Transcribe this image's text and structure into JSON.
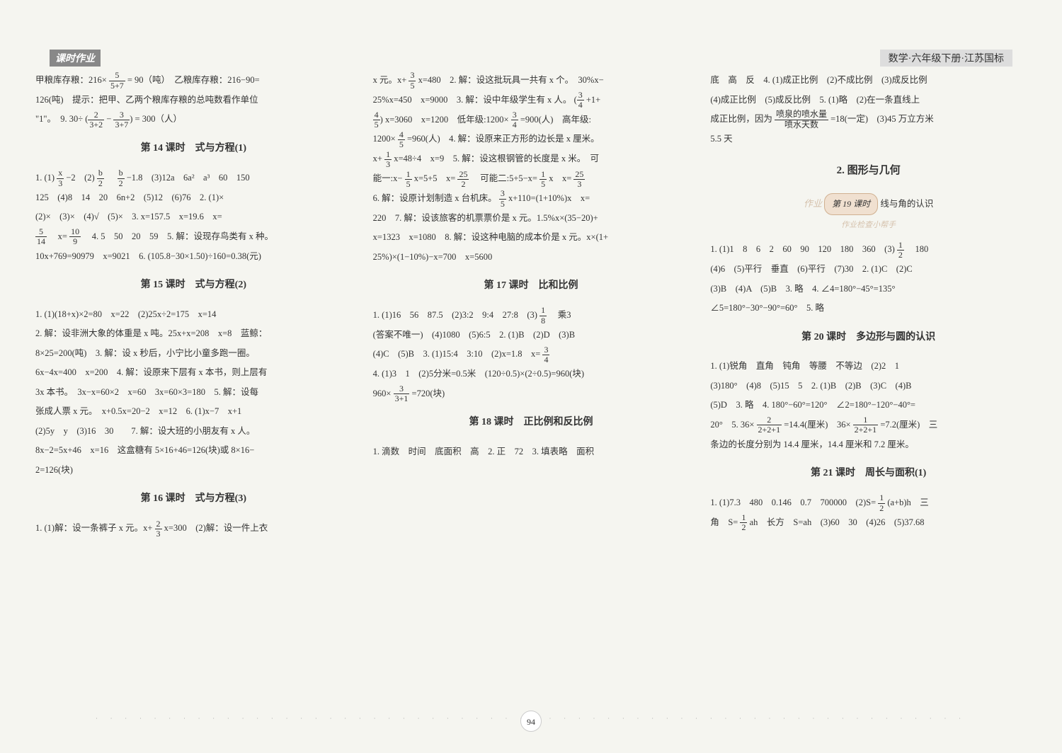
{
  "header": {
    "left": "课时作业",
    "right": "数学·六年级下册·江苏国标"
  },
  "col1": {
    "intro1": "甲粮库存粮：216×",
    "frac1_num": "5",
    "frac1_den": "5+7",
    "intro2": "= 90（吨）　乙粮库存粮：216−90=",
    "line2": "126(吨)　提示：把甲、乙两个粮库存粮的总吨数看作单位",
    "line3a": "\"1\"。　9. 30÷",
    "frac2a_num": "2",
    "frac2a_den": "3+2",
    "line3b": "−",
    "frac2b_num": "3",
    "frac2b_den": "3+7",
    "line3c": "= 300（人）",
    "title14": "第 14 课时　式与方程(1)",
    "l14_1a": "1. (1)",
    "l14_f1_num": "x",
    "l14_f1_den": "3",
    "l14_1b": "−2　(2)",
    "l14_f2_num": "b",
    "l14_f2_den": "2",
    "l14_1c": "　",
    "l14_f3_num": "b",
    "l14_f3_den": "2",
    "l14_1d": "−1.8　(3)12a　6a²　a³　60　150",
    "l14_2": "125　(4)8　14　20　6n+2　(5)12　(6)76　2. (1)×",
    "l14_3": "(2)×　(3)×　(4)√　(5)×　3. x=157.5　x=19.6　x=",
    "l14_4a": "",
    "l14_f4_num": "5",
    "l14_f4_den": "14",
    "l14_4b": "　x=",
    "l14_f5_num": "10",
    "l14_f5_den": "9",
    "l14_4c": "　4. 5　50　20　59　5. 解：设现存鸟类有 x 种。",
    "l14_5": "10x+769=90979　x=9021　6. (105.8−30×1.50)÷160=0.38(元)",
    "title15": "第 15 课时　式与方程(2)",
    "l15_1": "1. (1)(18+x)×2=80　x=22　(2)25x÷2=175　x=14",
    "l15_2": "2. 解：设非洲大象的体重是 x 吨。25x+x=208　x=8　蓝鲸：",
    "l15_3": "8×25=200(吨)　3. 解：设 x 秒后，小宁比小童多跑一圈。",
    "l15_4": "6x−4x=400　x=200　4. 解：设原来下层有 x 本书，则上层有",
    "l15_5": "3x 本书。　3x−x=60×2　x=60　3x=60×3=180　5. 解：设每",
    "l15_6": "张成人票 x 元。　x+0.5x=20−2　x=12　6. (1)x−7　x+1",
    "l15_7": "(2)5y　y　(3)16　30　　7. 解：设大班的小朋友有 x 人。",
    "l15_8": "8x−2=5x+46　x=16　这盒糖有 5×16+46=126(块)或 8×16−",
    "l15_9": "2=126(块)",
    "title16": "第 16 课时　式与方程(3)",
    "l16_1a": "1. (1)解：设一条裤子 x 元。x+",
    "l16_f1_num": "2",
    "l16_f1_den": "3",
    "l16_1b": "x=300　(2)解：设一件上衣"
  },
  "col2": {
    "l1a": "x 元。x+",
    "f1_num": "3",
    "f1_den": "5",
    "l1b": "x=480　2. 解：设这批玩具一共有 x 个。　30%x−",
    "l2a": "25%x=450　x=9000　3. 解：设中年级学生有 x 人。",
    "f2_num": "3",
    "f2_den": "4",
    "l2b": "+1+",
    "l3a": "",
    "f3_num": "4",
    "f3_den": "5",
    "l3b": "x=3060　x=1200　低年级:1200×",
    "f4_num": "3",
    "f4_den": "4",
    "l3c": "=900(人)　高年级:",
    "l4a": "1200×",
    "f5_num": "4",
    "f5_den": "5",
    "l4b": "=960(人)　4. 解：设原来正方形的边长是 x 厘米。",
    "l5a": "x+",
    "f6_num": "1",
    "f6_den": "3",
    "l5b": "x=48÷4　x=9　5. 解：设这根钢管的长度是 x 米。　可",
    "l6a": "能一:x−",
    "f7_num": "1",
    "f7_den": "5",
    "l6b": "x=5+5　x=",
    "f8_num": "25",
    "f8_den": "2",
    "l6c": "　可能二:5+5−x=",
    "f9_num": "1",
    "f9_den": "5",
    "l6d": "x　x=",
    "f10_num": "25",
    "f10_den": "3",
    "l7a": "6. 解：设原计划制造 x 台机床。",
    "f11_num": "3",
    "f11_den": "5",
    "l7b": "x+110=(1+10%)x　x=",
    "l8": "220　7. 解：设该旅客的机票票价是 x 元。1.5%x×(35−20)+",
    "l9": "x=1323　x=1080　8. 解：设这种电脑的成本价是 x 元。x×(1+",
    "l10": "25%)×(1−10%)−x=700　x=5600",
    "title17": "第 17 课时　比和比例",
    "l17_1a": "1. (1)16　56　87.5　(2)3:2　9:4　27:8　(3)",
    "f17_1_num": "1",
    "f17_1_den": "8",
    "l17_1b": "　乘3",
    "l17_2": "(答案不唯一)　(4)1080　(5)6:5　2. (1)B　(2)D　(3)B",
    "l17_3a": "(4)C　(5)B　3. (1)15:4　3:10　(2)x=1.8　x=",
    "f17_2_num": "3",
    "f17_2_den": "4",
    "l17_4": "4. (1)3　1　(2)5分米=0.5米　(120÷0.5)×(2÷0.5)=960(块)",
    "l17_5a": "960×",
    "f17_3_num": "3",
    "f17_3_den": "3+1",
    "l17_5b": "=720(块)",
    "title18": "第 18 课时　正比例和反比例",
    "l18_1": "1. 滴数　时间　底面积　高　2. 正　72　3. 填表略　面积"
  },
  "col3": {
    "l1": "底　高　反　4. (1)成正比例　(2)不成比例　(3)成反比例",
    "l2": "(4)成正比例　(5)成反比例　5. (1)略　(2)在一条直线上",
    "l3a": "成正比例，因为",
    "f1_num": "喷泉的喷水量",
    "f1_den": "喷水天数",
    "l3b": "=18(一定)　(3)45 万立方米",
    "l4": "5.5 天",
    "bigtitle": "2. 图形与几何",
    "badge1": "第 19 课时",
    "badge1_sub": "线与角的认识",
    "badge2": "作业检查小帮手",
    "l19_1a": "1. (1)1　8　6　2　60　90　120　180　360　(3)",
    "f19_1_num": "1",
    "f19_1_den": "2",
    "l19_1b": "　180",
    "l19_2": "(4)6　(5)平行　垂直　(6)平行　(7)30　2. (1)C　(2)C",
    "l19_3": "(3)B　(4)A　(5)B　3. 略　4. ∠4=180°−45°=135°",
    "l19_4": "∠5=180°−30°−90°=60°　5. 略",
    "title20": "第 20 课时　多边形与圆的认识",
    "l20_1": "1. (1)锐角　直角　钝角　等腰　不等边　(2)2　1",
    "l20_2": "(3)180°　(4)8　(5)15　5　2. (1)B　(2)B　(3)C　(4)B",
    "l20_3": "(5)D　3. 略　4. 180°−60°=120°　∠2=180°−120°−40°=",
    "l20_4a": "20°　5. 36×",
    "f20_1_num": "2",
    "f20_1_den": "2+2+1",
    "l20_4b": "=14.4(厘米)　36×",
    "f20_2_num": "1",
    "f20_2_den": "2+2+1",
    "l20_4c": "=7.2(厘米)　三",
    "l20_5": "条边的长度分别为 14.4 厘米，14.4 厘米和 7.2 厘米。",
    "title21": "第 21 课时　周长与面积(1)",
    "l21_1a": "1. (1)7.3　480　0.146　0.7　700000　(2)S=",
    "f21_1_num": "1",
    "f21_1_den": "2",
    "l21_1b": "(a+b)h　三",
    "l21_2a": "角　S=",
    "f21_2_num": "1",
    "f21_2_den": "2",
    "l21_2b": "ah　长方　S=ah　(3)60　30　(4)26　(5)37.68"
  },
  "pagenum": "94",
  "watermark1": "作业",
  "watermark2": "作业检查小帮手"
}
